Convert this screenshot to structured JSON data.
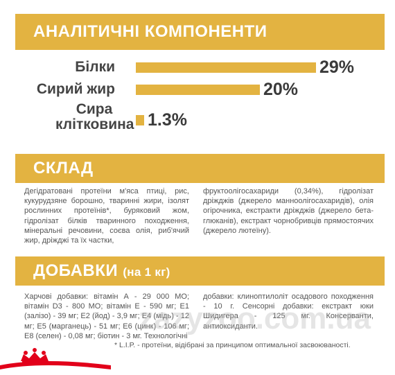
{
  "sections": {
    "analytic_title": "АНАЛІТИЧНІ КОМПОНЕНТИ",
    "composition_title": "СКЛАД",
    "additives_title": "ДОБАВКИ",
    "additives_title_suffix": "(на 1 кг)"
  },
  "chart_data": {
    "type": "bar",
    "orientation": "horizontal",
    "categories": [
      "Білки",
      "Сирий жир",
      "Сира клітковина"
    ],
    "values": [
      29,
      20,
      1.3
    ],
    "value_labels": [
      "29%",
      "20%",
      "1.3%"
    ],
    "unit": "%",
    "xlim": [
      0,
      29
    ],
    "grid": false,
    "colors": {
      "bar": "#e3b341",
      "label": "#444444"
    }
  },
  "composition": {
    "left": "Дегідратовані протеїни м'яса птиці, рис, кукурудзяне борошно, тваринні жири, ізолят рослинних протеїнів*, буряковий жом, гідролізат білків тваринного походження, мінеральні речовини, соєва олія, риб'ячий жир, дріжджі та їх частки,",
    "right": "фруктоолігосахариди (0,34%), гідролізат дріжджів (джерело манноолігосахаридів), олія огірочника, екстракти дріжджів (джерело бета-глюканів), екстракт чорнобривців прямостоячих (джерело лютеїну)."
  },
  "additives": {
    "left": "Харчові добавки: вітамін А - 29 000 МО; вітамін D3 - 800 МО; вітамін Е - 590 мг; Е1 (залізо) - 39 мг; Е2 (йод) - 3,9 мг; Е4 (мідь) - 12 мг; Е5 (марганець) - 51 мг; Е6 (цинк) - 106 мг; Е8 (селен) - 0,08 мг; біотин - 3 мг. Технологічні",
    "right": "добавки: клиноптилоліт осадового походження - 10 г. Сенсорні добавки: екстракт юки Шидигера - 125 мг. Консерванти, антиоксиданти.",
    "footnote": "* L.I.P. - протеїни, відібрані за принципом оптимальної засвоюваності."
  },
  "watermark": "zazyzoo.com.ua",
  "logo": {
    "icon": "royal-canin-crown-logo",
    "color": "#e2001a"
  }
}
